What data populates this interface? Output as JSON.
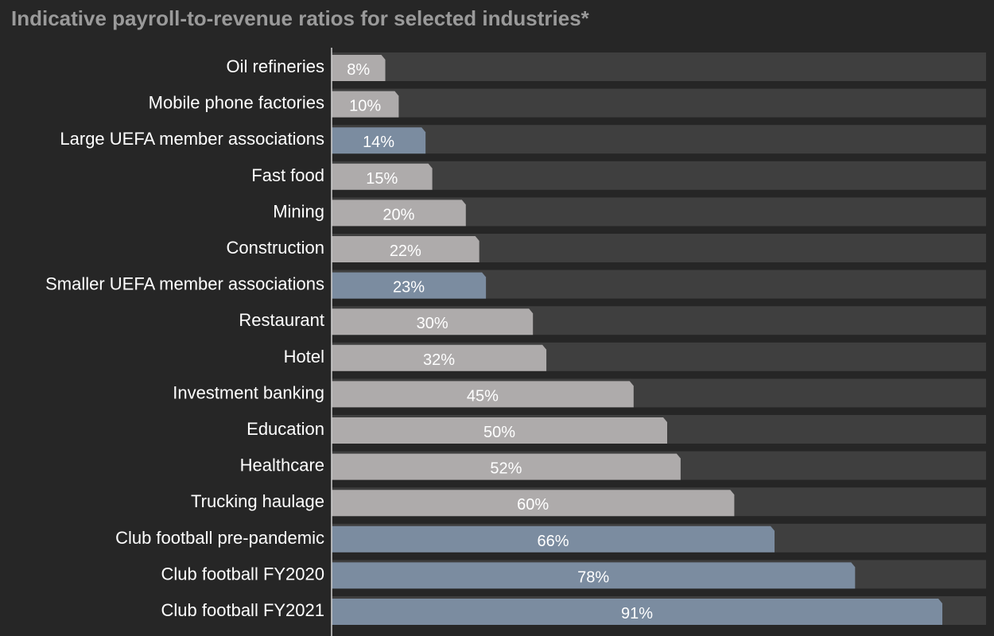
{
  "title": "Indicative payroll-to-revenue ratios for selected industries*",
  "colors": {
    "background": "#262626",
    "track": "#3f3f3f",
    "bar_industry": "#aeabab",
    "bar_football": "#7b8ca0",
    "axis": "#d0d0d0",
    "title": "#9a9a9a"
  },
  "chart_data": {
    "type": "bar",
    "orientation": "horizontal",
    "title": "Indicative payroll-to-revenue ratios for selected industries*",
    "xlim": [
      0,
      100
    ],
    "unit": "%",
    "grid": false,
    "legend": false,
    "categories": [
      "Oil refineries",
      "Mobile phone factories",
      "Large UEFA member associations",
      "Fast food",
      "Mining",
      "Construction",
      "Smaller UEFA member associations",
      "Restaurant",
      "Hotel",
      "Investment banking",
      "Education",
      "Healthcare",
      "Trucking haulage",
      "Club football pre-pandemic",
      "Club football FY2020",
      "Club football FY2021"
    ],
    "values": [
      8,
      10,
      14,
      15,
      20,
      22,
      23,
      30,
      32,
      45,
      50,
      52,
      60,
      66,
      78,
      91
    ],
    "labels": [
      "8%",
      "10%",
      "14%",
      "15%",
      "20%",
      "22%",
      "23%",
      "30%",
      "32%",
      "45%",
      "50%",
      "52%",
      "60%",
      "66%",
      "78%",
      "91%"
    ],
    "highlight": [
      false,
      false,
      true,
      false,
      false,
      false,
      true,
      false,
      false,
      false,
      false,
      false,
      false,
      true,
      true,
      true
    ]
  }
}
